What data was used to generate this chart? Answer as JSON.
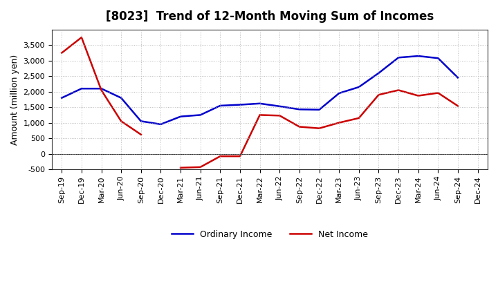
{
  "title": "[8023]  Trend of 12-Month Moving Sum of Incomes",
  "ylabel": "Amount (million yen)",
  "background_color": "#ffffff",
  "grid_color": "#aaaaaa",
  "x_labels": [
    "Sep-19",
    "Dec-19",
    "Mar-20",
    "Jun-20",
    "Sep-20",
    "Dec-20",
    "Mar-21",
    "Jun-21",
    "Sep-21",
    "Dec-21",
    "Mar-22",
    "Jun-22",
    "Sep-22",
    "Dec-22",
    "Mar-23",
    "Jun-23",
    "Sep-23",
    "Dec-23",
    "Mar-24",
    "Jun-24",
    "Sep-24",
    "Dec-24"
  ],
  "ordinary_income": [
    1800,
    2100,
    2100,
    1800,
    1050,
    950,
    1200,
    1250,
    1550,
    1580,
    1620,
    1530,
    1430,
    1420,
    1950,
    2150,
    2600,
    3100,
    3150,
    3080,
    2450,
    null
  ],
  "net_income": [
    3250,
    3750,
    2050,
    1050,
    620,
    null,
    -450,
    -430,
    -80,
    -80,
    1250,
    1230,
    870,
    820,
    1000,
    1150,
    1900,
    2050,
    1870,
    1960,
    1540,
    null
  ],
  "ylim": [
    -500,
    4000
  ],
  "yticks": [
    -500,
    0,
    500,
    1000,
    1500,
    2000,
    2500,
    3000,
    3500
  ],
  "line_color_ordinary": "#0000cc",
  "line_color_net": "#cc0000",
  "legend_labels": [
    "Ordinary Income",
    "Net Income"
  ]
}
